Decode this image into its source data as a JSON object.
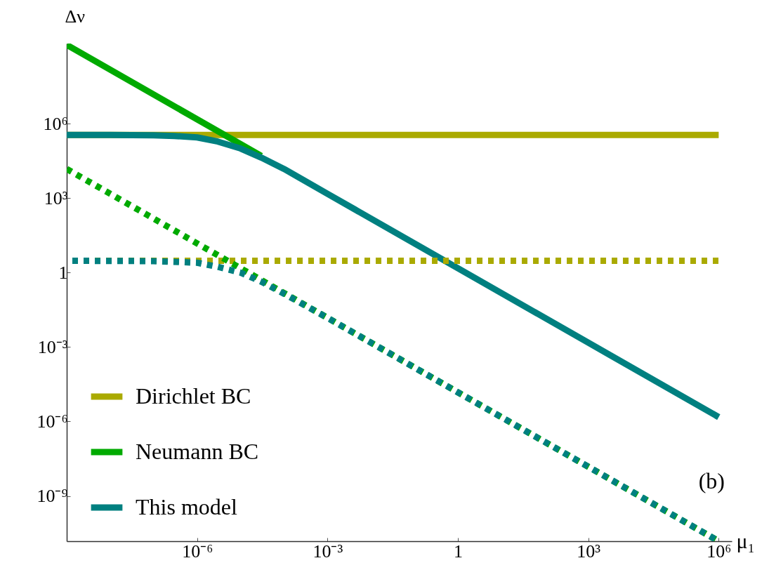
{
  "chart_data": {
    "type": "line",
    "xlabel": "μ₁",
    "ylabel": "Δν",
    "log": "xy",
    "grid": false,
    "legend": "bottom left",
    "annotations": [
      "(b)"
    ],
    "xlim": [
      1e-09,
      2000000.0
    ],
    "ylim": [
      1.5e-11,
      1700000000.0
    ],
    "xticks": [
      {
        "value": 1e-06,
        "label": "10⁻⁶"
      },
      {
        "value": 0.001,
        "label": "10⁻³"
      },
      1,
      {
        "value": 1000,
        "label": "10³"
      },
      {
        "value": 1000000.0,
        "label": "10⁶"
      }
    ],
    "yticks": [
      {
        "value": 1e-09,
        "label": "10⁻⁹"
      },
      {
        "value": 1e-06,
        "label": "10⁻⁶"
      },
      {
        "value": 0.001,
        "label": "10⁻³"
      },
      1,
      {
        "value": 1000,
        "label": "10³"
      },
      {
        "value": 1000000.0,
        "label": "10⁶"
      }
    ],
    "series": [
      {
        "name": "Dirichlet BC",
        "color": "#aaaa00",
        "line_style": "solid",
        "x": [
          1e-09,
          1000000.0
        ],
        "values": [
          350000,
          350000
        ]
      },
      {
        "name": "Neumann BC",
        "color": "#00aa00",
        "line_style": "solid",
        "x": [
          1e-09,
          3e-05
        ],
        "values": [
          1500000000.0,
          50000
        ]
      },
      {
        "name": "This model",
        "color": "#008080",
        "line_style": "solid",
        "x": [
          1e-09,
          1e-08,
          1e-07,
          3e-07,
          1e-06,
          3e-06,
          1e-05,
          3e-05,
          0.0001,
          0.001,
          1,
          1000,
          1000000.0
        ],
        "values": [
          350000,
          350000,
          340000,
          320000,
          280000,
          190000,
          100000,
          43000,
          15000,
          1500,
          1.5,
          0.0015,
          1.5e-06
        ]
      },
      {
        "color": "#aaaa00",
        "line_style": "dotted",
        "x": [
          1e-09,
          1000000.0
        ],
        "values": [
          3,
          3
        ]
      },
      {
        "color": "#00aa00",
        "line_style": "dotted",
        "x": [
          1e-09,
          1000000.0
        ],
        "values": [
          15000,
          1.5e-11
        ]
      },
      {
        "color": "#008080",
        "line_style": "dotted",
        "x": [
          1e-09,
          1e-07,
          1e-06,
          3e-06,
          1e-05,
          3e-05,
          0.0001,
          0.001,
          1000000.0
        ],
        "values": [
          3,
          2.9,
          2.5,
          1.7,
          1.0,
          0.43,
          0.14,
          0.015,
          1.5e-11
        ]
      }
    ]
  }
}
